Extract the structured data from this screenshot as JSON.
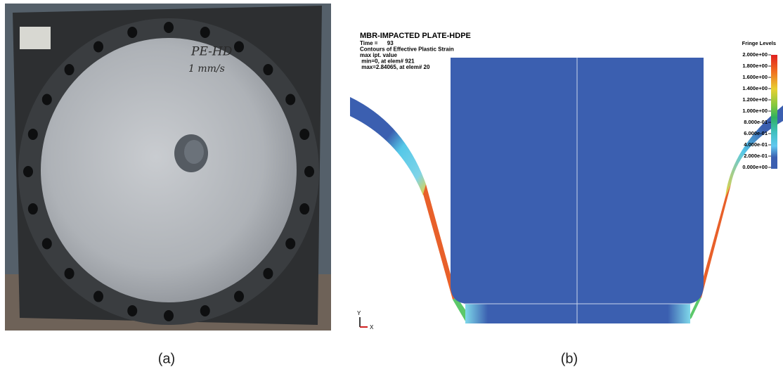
{
  "panels": {
    "a": {
      "caption": "(a)",
      "handwriting": [
        "PE-HD",
        "1 mm/s"
      ]
    },
    "b": {
      "caption": "(b)",
      "title": "MBR-IMPACTED PLATE-HDPE",
      "info": [
        "Time =      93",
        "Contours of Effective Plastic Strain",
        "max ipt. value",
        " min=0, at elem# 921",
        " max=2.84065, at elem# 20"
      ],
      "fringe_title": "Fringe Levels",
      "fringe_levels": [
        "2.000e+00",
        "1.800e+00",
        "1.600e+00",
        "1.400e+00",
        "1.200e+00",
        "1.000e+00",
        "8.000e-01",
        "6.000e-01",
        "4.000e-01",
        "2.000e-01",
        "0.000e+00"
      ],
      "axis_y": "Y",
      "axis_x": "X"
    }
  }
}
